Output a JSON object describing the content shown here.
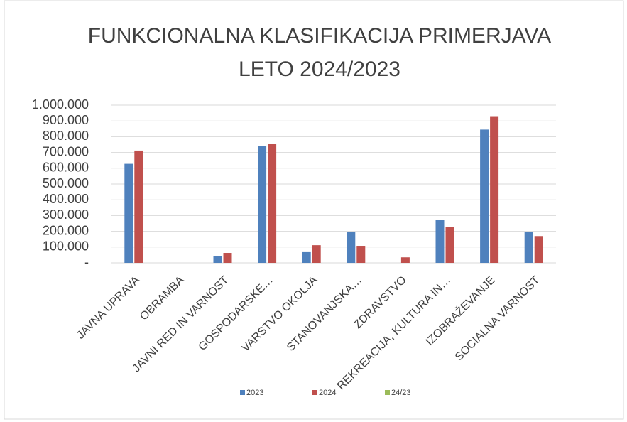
{
  "chart_data": {
    "type": "bar",
    "title": [
      "FUNKCIONALNA KLASIFIKACIJA PRIMERJAVA",
      "LETO 2024/2023"
    ],
    "categories": [
      "JAVNA UPRAVA",
      "OBRAMBA",
      "JAVNI RED IN VARNOST",
      "GOSPODARSKE…",
      "VARSTVO OKOLJA",
      "STANOVANJSKA…",
      "ZDRAVSTVO",
      "REKREACIJA, KULTURA IN…",
      "IZOBRAŽEVANJE",
      "SOCIALNA VARNOST"
    ],
    "series": [
      {
        "name": "2023",
        "color": "#4f81bd",
        "values": [
          628000,
          0,
          45000,
          740000,
          68000,
          195000,
          0,
          272000,
          845000,
          198000
        ]
      },
      {
        "name": "2024",
        "color": "#c0504d",
        "values": [
          712000,
          0,
          63000,
          755000,
          112000,
          108000,
          35000,
          228000,
          930000,
          170000
        ]
      },
      {
        "name": "24/23",
        "color": "#9bbb59",
        "values": [
          null,
          null,
          null,
          null,
          null,
          null,
          null,
          null,
          null,
          null
        ]
      }
    ],
    "ylim": [
      0,
      1000000
    ],
    "yticks": [
      {
        "value": 0,
        "label": "-"
      },
      {
        "value": 100000,
        "label": "100.000"
      },
      {
        "value": 200000,
        "label": "200.000"
      },
      {
        "value": 300000,
        "label": "300.000"
      },
      {
        "value": 400000,
        "label": "400.000"
      },
      {
        "value": 500000,
        "label": "500.000"
      },
      {
        "value": 600000,
        "label": "600.000"
      },
      {
        "value": 700000,
        "label": "700.000"
      },
      {
        "value": 800000,
        "label": "800.000"
      },
      {
        "value": 900000,
        "label": "900.000"
      },
      {
        "value": 1000000,
        "label": "1.000.000"
      }
    ],
    "grid": true,
    "legend": "bottom"
  }
}
